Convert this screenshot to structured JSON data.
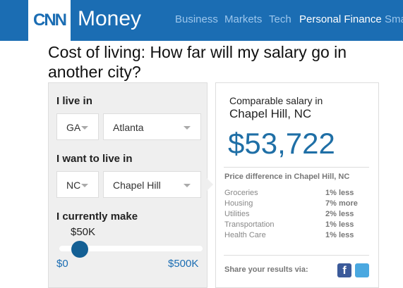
{
  "header": {
    "logo": "CNN",
    "brand": "Money",
    "nav": [
      "Business",
      "Markets",
      "Tech",
      "Personal Finance",
      "Sma"
    ]
  },
  "title": "Cost of living: How far will my salary go in another city?",
  "form": {
    "live_label": "I live in",
    "live_state": "GA",
    "live_city": "Atlanta",
    "move_label": "I want to live in",
    "move_state": "NC",
    "move_city": "Chapel Hill",
    "make_label": "I currently make",
    "slider_value": "$50K",
    "slider_min": "$0",
    "slider_max": "$500K"
  },
  "result": {
    "intro": "Comparable salary in",
    "city": "Chapel Hill, NC",
    "salary": "$53,722",
    "diff_title": "Price difference in Chapel Hill, NC",
    "rows": [
      [
        "Groceries",
        "1% less"
      ],
      [
        "Housing",
        "7% more"
      ],
      [
        "Utilities",
        "2% less"
      ],
      [
        "Transportation",
        "1% less"
      ],
      [
        "Health Care",
        "1% less"
      ]
    ],
    "share": "Share your results via:"
  }
}
